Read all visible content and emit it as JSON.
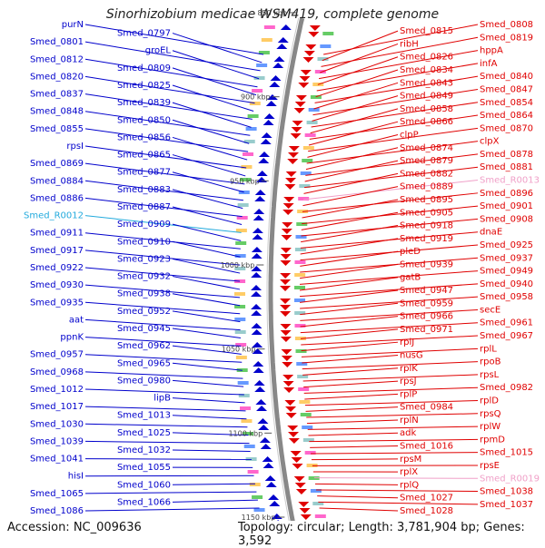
{
  "title": "Sinorhizobium medicae WSM419, complete genome",
  "footer": {
    "accession": "Accession: NC_009636",
    "meta": "Topology: circular; Length: 3,781,904 bp; Genes: 3,592"
  },
  "colors": {
    "left": "#0000cc",
    "right": "#e00000",
    "rna_left": "#22aadd",
    "rna_right": "#f0a0c8",
    "backbone": "#888888",
    "ticks": "#555555"
  },
  "ruler_ticks": [
    "850 kbp",
    "900 kbp",
    "950 kbp",
    "1000 kbp",
    "1050 kbp",
    "1100 kbp",
    "1150 kbp"
  ],
  "left_labels": [
    {
      "text": "purN",
      "rna": false
    },
    {
      "text": "Smed_0797",
      "rna": false
    },
    {
      "text": "Smed_0801",
      "rna": false
    },
    {
      "text": "groEL",
      "rna": false
    },
    {
      "text": "Smed_0812",
      "rna": false
    },
    {
      "text": "Smed_0809",
      "rna": false
    },
    {
      "text": "Smed_0820",
      "rna": false
    },
    {
      "text": "Smed_0825",
      "rna": false
    },
    {
      "text": "Smed_0837",
      "rna": false
    },
    {
      "text": "Smed_0839",
      "rna": false
    },
    {
      "text": "Smed_0848",
      "rna": false
    },
    {
      "text": "Smed_0850",
      "rna": false
    },
    {
      "text": "Smed_0855",
      "rna": false
    },
    {
      "text": "Smed_0856",
      "rna": false
    },
    {
      "text": "rpsI",
      "rna": false
    },
    {
      "text": "Smed_0865",
      "rna": false
    },
    {
      "text": "Smed_0869",
      "rna": false
    },
    {
      "text": "Smed_0877",
      "rna": false
    },
    {
      "text": "Smed_0884",
      "rna": false
    },
    {
      "text": "Smed_0883",
      "rna": false
    },
    {
      "text": "Smed_0886",
      "rna": false
    },
    {
      "text": "Smed_0887",
      "rna": false
    },
    {
      "text": "Smed_R0012",
      "rna": true
    },
    {
      "text": "Smed_0909",
      "rna": false
    },
    {
      "text": "Smed_0911",
      "rna": false
    },
    {
      "text": "Smed_0910",
      "rna": false
    },
    {
      "text": "Smed_0917",
      "rna": false
    },
    {
      "text": "Smed_0923",
      "rna": false
    },
    {
      "text": "Smed_0922",
      "rna": false
    },
    {
      "text": "Smed_0932",
      "rna": false
    },
    {
      "text": "Smed_0930",
      "rna": false
    },
    {
      "text": "Smed_0938",
      "rna": false
    },
    {
      "text": "Smed_0935",
      "rna": false
    },
    {
      "text": "Smed_0952",
      "rna": false
    },
    {
      "text": "aat",
      "rna": false
    },
    {
      "text": "Smed_0945",
      "rna": false
    },
    {
      "text": "ppnK",
      "rna": false
    },
    {
      "text": "Smed_0962",
      "rna": false
    },
    {
      "text": "Smed_0957",
      "rna": false
    },
    {
      "text": "Smed_0965",
      "rna": false
    },
    {
      "text": "Smed_0968",
      "rna": false
    },
    {
      "text": "Smed_0980",
      "rna": false
    },
    {
      "text": "Smed_1012",
      "rna": false
    },
    {
      "text": "lipB",
      "rna": false
    },
    {
      "text": "Smed_1017",
      "rna": false
    },
    {
      "text": "Smed_1013",
      "rna": false
    },
    {
      "text": "Smed_1030",
      "rna": false
    },
    {
      "text": "Smed_1025",
      "rna": false
    },
    {
      "text": "Smed_1039",
      "rna": false
    },
    {
      "text": "Smed_1032",
      "rna": false
    },
    {
      "text": "Smed_1041",
      "rna": false
    },
    {
      "text": "Smed_1055",
      "rna": false
    },
    {
      "text": "hisI",
      "rna": false
    },
    {
      "text": "Smed_1060",
      "rna": false
    },
    {
      "text": "Smed_1065",
      "rna": false
    },
    {
      "text": "Smed_1066",
      "rna": false
    },
    {
      "text": "Smed_1086",
      "rna": false
    }
  ],
  "right_labels": [
    {
      "text": "Smed_0808",
      "rna": false
    },
    {
      "text": "Smed_0815",
      "rna": false
    },
    {
      "text": "Smed_0819",
      "rna": false
    },
    {
      "text": "ribH",
      "rna": false
    },
    {
      "text": "hppA",
      "rna": false
    },
    {
      "text": "Smed_0826",
      "rna": false
    },
    {
      "text": "infA",
      "rna": false
    },
    {
      "text": "Smed_0834",
      "rna": false
    },
    {
      "text": "Smed_0840",
      "rna": false
    },
    {
      "text": "Smed_0843",
      "rna": false
    },
    {
      "text": "Smed_0847",
      "rna": false
    },
    {
      "text": "Smed_0849",
      "rna": false
    },
    {
      "text": "Smed_0854",
      "rna": false
    },
    {
      "text": "Smed_0858",
      "rna": false
    },
    {
      "text": "Smed_0864",
      "rna": false
    },
    {
      "text": "Smed_0866",
      "rna": false
    },
    {
      "text": "Smed_0870",
      "rna": false
    },
    {
      "text": "clpP",
      "rna": false
    },
    {
      "text": "clpX",
      "rna": false
    },
    {
      "text": "Smed_0874",
      "rna": false
    },
    {
      "text": "Smed_0878",
      "rna": false
    },
    {
      "text": "Smed_0879",
      "rna": false
    },
    {
      "text": "Smed_0881",
      "rna": false
    },
    {
      "text": "Smed_0882",
      "rna": false
    },
    {
      "text": "Smed_R0013",
      "rna": true
    },
    {
      "text": "Smed_0889",
      "rna": false
    },
    {
      "text": "Smed_0896",
      "rna": false
    },
    {
      "text": "Smed_0895",
      "rna": false
    },
    {
      "text": "Smed_0901",
      "rna": false
    },
    {
      "text": "Smed_0905",
      "rna": false
    },
    {
      "text": "Smed_0908",
      "rna": false
    },
    {
      "text": "Smed_0918",
      "rna": false
    },
    {
      "text": "dnaE",
      "rna": false
    },
    {
      "text": "Smed_0919",
      "rna": false
    },
    {
      "text": "Smed_0925",
      "rna": false
    },
    {
      "text": "pleD",
      "rna": false
    },
    {
      "text": "Smed_0937",
      "rna": false
    },
    {
      "text": "Smed_0939",
      "rna": false
    },
    {
      "text": "Smed_0949",
      "rna": false
    },
    {
      "text": "gatB",
      "rna": false
    },
    {
      "text": "Smed_0940",
      "rna": false
    },
    {
      "text": "Smed_0947",
      "rna": false
    },
    {
      "text": "Smed_0958",
      "rna": false
    },
    {
      "text": "Smed_0959",
      "rna": false
    },
    {
      "text": "secE",
      "rna": false
    },
    {
      "text": "Smed_0966",
      "rna": false
    },
    {
      "text": "Smed_0961",
      "rna": false
    },
    {
      "text": "Smed_0971",
      "rna": false
    },
    {
      "text": "Smed_0967",
      "rna": false
    },
    {
      "text": "rplJ",
      "rna": false
    },
    {
      "text": "rplL",
      "rna": false
    },
    {
      "text": "nusG",
      "rna": false
    },
    {
      "text": "rpoB",
      "rna": false
    },
    {
      "text": "rplK",
      "rna": false
    },
    {
      "text": "rpsL",
      "rna": false
    },
    {
      "text": "rpsJ",
      "rna": false
    },
    {
      "text": "Smed_0982",
      "rna": false
    },
    {
      "text": "rplP",
      "rna": false
    },
    {
      "text": "rplD",
      "rna": false
    },
    {
      "text": "Smed_0984",
      "rna": false
    },
    {
      "text": "rpsQ",
      "rna": false
    },
    {
      "text": "rplN",
      "rna": false
    },
    {
      "text": "rplW",
      "rna": false
    },
    {
      "text": "adk",
      "rna": false
    },
    {
      "text": "rpmD",
      "rna": false
    },
    {
      "text": "Smed_1016",
      "rna": false
    },
    {
      "text": "Smed_1015",
      "rna": false
    },
    {
      "text": "rpsM",
      "rna": false
    },
    {
      "text": "rpsE",
      "rna": false
    },
    {
      "text": "rplX",
      "rna": false
    },
    {
      "text": "Smed_R0019",
      "rna": true
    },
    {
      "text": "rplQ",
      "rna": false
    },
    {
      "text": "Smed_1038",
      "rna": false
    },
    {
      "text": "Smed_1027",
      "rna": false
    },
    {
      "text": "Smed_1037",
      "rna": false
    },
    {
      "text": "Smed_1028",
      "rna": false
    }
  ]
}
